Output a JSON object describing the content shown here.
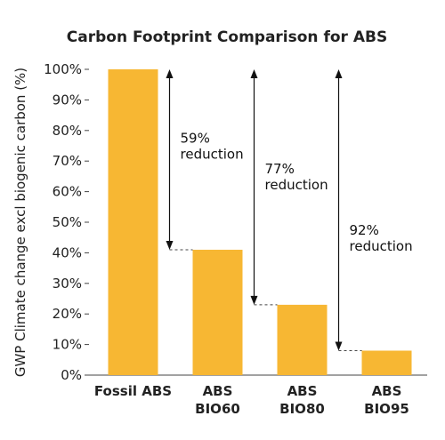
{
  "chart_data": {
    "type": "bar",
    "title": "Carbon Footprint Comparison for ABS",
    "ylabel": "GWP Climate change excl biogenic carbon (%)",
    "xlabel": "",
    "ylim": [
      0,
      100
    ],
    "yticks": [
      0,
      10,
      20,
      30,
      40,
      50,
      60,
      70,
      80,
      90,
      100
    ],
    "ytick_labels": [
      "0%",
      "10%",
      "20%",
      "30%",
      "40%",
      "50%",
      "60%",
      "70%",
      "80%",
      "90%",
      "100%"
    ],
    "categories": [
      {
        "line1": "Fossil ABS",
        "line2": ""
      },
      {
        "line1": "ABS",
        "line2": "BIO60"
      },
      {
        "line1": "ABS",
        "line2": "BIO80"
      },
      {
        "line1": "ABS",
        "line2": "BIO95"
      }
    ],
    "values": [
      100,
      41,
      23,
      8
    ],
    "bar_color": "#f7b733",
    "grid": false,
    "legend": "none",
    "annotations": [
      {
        "target_index": 1,
        "value_line1": "59%",
        "value_line2": "reduction"
      },
      {
        "target_index": 2,
        "value_line1": "77%",
        "value_line2": "reduction"
      },
      {
        "target_index": 3,
        "value_line1": "92%",
        "value_line2": "reduction"
      }
    ]
  }
}
